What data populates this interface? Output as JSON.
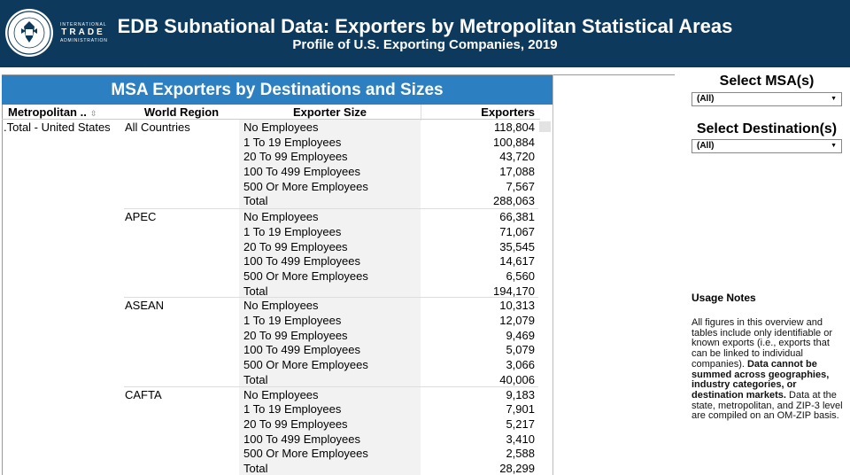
{
  "header": {
    "title": "EDB Subnational Data: Exporters by Metropolitan Statistical Areas",
    "subtitle": "Profile of U.S. Exporting Companies, 2019",
    "brand_line1": "INTERNATIONAL",
    "brand_line2": "TRADE",
    "brand_line3": "ADMINISTRATION",
    "colors": {
      "band": "#0d3a5c",
      "panel_title": "#2c7fc1"
    }
  },
  "table": {
    "title": "MSA Exporters by Destinations and Sizes",
    "columns": [
      "Metropolitan ..",
      "World Region",
      "Exporter Size",
      "Exporters"
    ],
    "msa": ".Total - United States",
    "groups": [
      {
        "region": "All Countries",
        "rows": [
          {
            "size": "No Employees",
            "exporters": "118,804"
          },
          {
            "size": "1 To 19 Employees",
            "exporters": "100,884"
          },
          {
            "size": "20 To 99 Employees",
            "exporters": "43,720"
          },
          {
            "size": "100 To 499 Employees",
            "exporters": "17,088"
          },
          {
            "size": "500 Or More Employees",
            "exporters": "7,567"
          },
          {
            "size": "Total",
            "exporters": "288,063"
          }
        ]
      },
      {
        "region": "APEC",
        "rows": [
          {
            "size": "No Employees",
            "exporters": "66,381"
          },
          {
            "size": "1 To 19 Employees",
            "exporters": "71,067"
          },
          {
            "size": "20 To 99 Employees",
            "exporters": "35,545"
          },
          {
            "size": "100 To 499 Employees",
            "exporters": "14,617"
          },
          {
            "size": "500 Or More Employees",
            "exporters": "6,560"
          },
          {
            "size": "Total",
            "exporters": "194,170"
          }
        ]
      },
      {
        "region": "ASEAN",
        "rows": [
          {
            "size": "No Employees",
            "exporters": "10,313"
          },
          {
            "size": "1 To 19 Employees",
            "exporters": "12,079"
          },
          {
            "size": "20 To 99 Employees",
            "exporters": "9,469"
          },
          {
            "size": "100 To 499 Employees",
            "exporters": "5,079"
          },
          {
            "size": "500 Or More Employees",
            "exporters": "3,066"
          },
          {
            "size": "Total",
            "exporters": "40,006"
          }
        ]
      },
      {
        "region": "CAFTA",
        "rows": [
          {
            "size": "No Employees",
            "exporters": "9,183"
          },
          {
            "size": "1 To 19 Employees",
            "exporters": "7,901"
          },
          {
            "size": "20 To 99 Employees",
            "exporters": "5,217"
          },
          {
            "size": "100 To 499 Employees",
            "exporters": "3,410"
          },
          {
            "size": "500 Or More Employees",
            "exporters": "2,588"
          },
          {
            "size": "Total",
            "exporters": "28,299"
          }
        ]
      }
    ]
  },
  "filters": {
    "msa_label": "Select MSA(s)",
    "msa_value": "(All)",
    "dest_label": "Select Destination(s)",
    "dest_value": "(All)"
  },
  "notes": {
    "title": "Usage Notes",
    "text_1": "All figures in this overview and tables include only identifiable or known exports (i.e., exports that can be linked to individual companies).",
    "text_bold": "Data cannot be summed across geographies, industry categories, or destination markets.",
    "text_2": "Data at the state, metropolitan, and ZIP-3 level are compiled on an OM-ZIP basis."
  }
}
